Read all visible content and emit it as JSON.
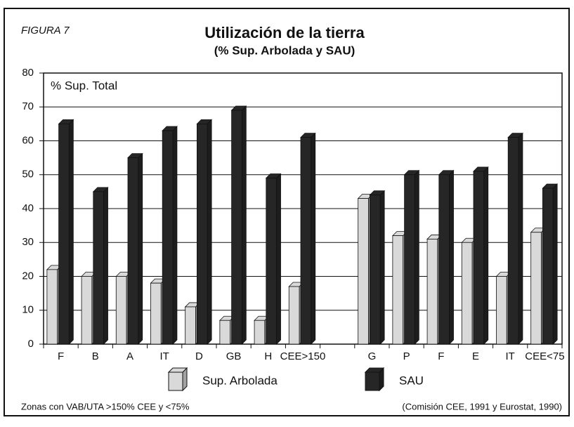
{
  "chart_data": {
    "type": "bar",
    "figure_label": "FIGURA 7",
    "title": "Utilización de la tierra",
    "subtitle": "(% Sup. Arbolada y SAU)",
    "ylabel": "% Sup. Total",
    "footnote": "Zonas con VAB/UTA >150% CEE y <75%",
    "source": "(Comisión CEE, 1991 y Eurostat, 1990)",
    "categories": [
      "F",
      "B",
      "A",
      "IT",
      "D",
      "GB",
      "H",
      "CEE>150",
      null,
      "G",
      "P",
      "F",
      "E",
      "IT",
      "CEE<75"
    ],
    "series": [
      {
        "name": "Sup. Arbolada",
        "color": "#d9d9d9",
        "values": [
          22,
          20,
          20,
          18,
          11,
          7,
          7,
          17,
          null,
          43,
          32,
          31,
          30,
          20,
          33
        ]
      },
      {
        "name": "SAU",
        "color": "#262626",
        "values": [
          65,
          45,
          55,
          63,
          65,
          69,
          49,
          61,
          null,
          44,
          50,
          50,
          51,
          61,
          46
        ]
      }
    ],
    "ylim": [
      0,
      80
    ],
    "yticks": [
      0,
      10,
      20,
      30,
      40,
      50,
      60,
      70,
      80
    ],
    "grid": true
  }
}
